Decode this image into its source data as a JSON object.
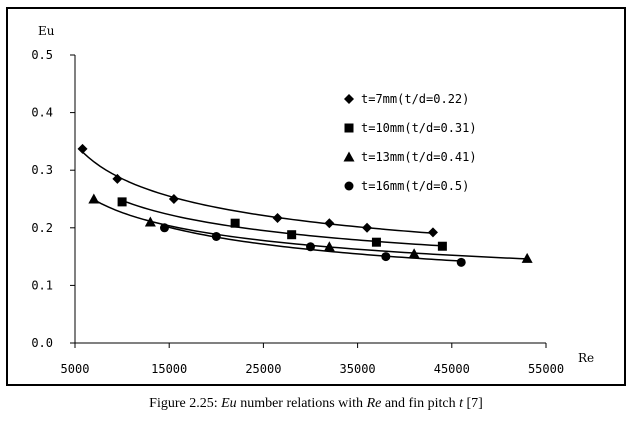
{
  "chart_data": {
    "type": "scatter",
    "xlabel": "Re",
    "ylabel": "Eu",
    "xlim": [
      5000,
      55000
    ],
    "ylim": [
      0,
      0.5
    ],
    "x_ticks": [
      "5000",
      "15000",
      "25000",
      "35000",
      "45000",
      "55000"
    ],
    "y_ticks": [
      "0.0",
      "0.1",
      "0.2",
      "0.3",
      "0.4",
      "0.5"
    ],
    "grid": false,
    "legend_position": "top-right",
    "trendlines": true,
    "series": [
      {
        "name": "t=7mm(t/d=0.22)",
        "marker": "diamond",
        "x": [
          5800,
          9500,
          15500,
          26500,
          32000,
          36000,
          43000
        ],
        "y": [
          0.337,
          0.285,
          0.25,
          0.217,
          0.208,
          0.2,
          0.192
        ]
      },
      {
        "name": "t=10mm(t/d=0.31)",
        "marker": "square",
        "x": [
          10000,
          22000,
          28000,
          37000,
          44000
        ],
        "y": [
          0.245,
          0.208,
          0.188,
          0.175,
          0.168
        ]
      },
      {
        "name": "t=13mm(t/d=0.41)",
        "marker": "triangle",
        "x": [
          7000,
          13000,
          32000,
          41000,
          53000
        ],
        "y": [
          0.25,
          0.21,
          0.167,
          0.155,
          0.147
        ]
      },
      {
        "name": "t=16mm(t/d=0.5)",
        "marker": "circle",
        "x": [
          14500,
          20000,
          30000,
          38000,
          46000
        ],
        "y": [
          0.2,
          0.185,
          0.167,
          0.15,
          0.14
        ]
      }
    ]
  },
  "caption": {
    "prefix": "Figure 2.25: ",
    "eu": "Eu",
    "mid1": " number relations with ",
    "re": "Re",
    "mid2": " and fin pitch ",
    "t": "t",
    "suffix": " [7]"
  }
}
